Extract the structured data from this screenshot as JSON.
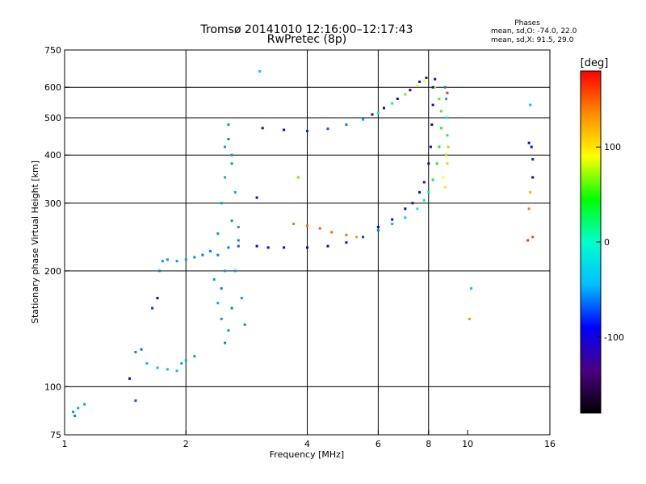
{
  "title_line1": "Tromsø 20141010 12:16:00–12:17:43",
  "title_line2": "RwPretec (8p)",
  "phases": {
    "heading": "Phases",
    "o_stats": "mean, sd,O:  -74.0, 22.0",
    "x_stats": "mean, sd,X:  91.5, 29.0"
  },
  "chart_data": {
    "type": "scatter",
    "title": "Tromsø 20141010 12:16:00–12:17:43",
    "subtitle": "RwPretec (8p)",
    "xlabel": "Frequency [MHz]",
    "ylabel": "Stationary phase Virtual Height [km]",
    "x_scale": "log",
    "y_scale": "log",
    "xlim": [
      1,
      16
    ],
    "ylim": [
      75,
      750
    ],
    "x_ticks": [
      1,
      2,
      4,
      6,
      8,
      10,
      16
    ],
    "y_ticks": [
      75,
      100,
      200,
      300,
      400,
      500,
      600,
      750
    ],
    "x_grid": [
      2,
      4,
      6,
      8
    ],
    "y_grid": [
      100,
      200,
      300,
      400,
      500,
      600
    ],
    "grid": true,
    "colorbar": {
      "label": "[deg]",
      "range": [
        -180,
        180
      ],
      "ticks": [
        100,
        0,
        -100
      ],
      "colors": [
        "#000000",
        "#4b0082",
        "#0000ff",
        "#00bfff",
        "#00ffcc",
        "#00ff00",
        "#ffff00",
        "#ff8c00",
        "#ff0000"
      ]
    },
    "series": [
      {
        "points": [
          [
            1.05,
            86,
            -55
          ],
          [
            1.08,
            88,
            -50
          ],
          [
            1.12,
            90,
            -50
          ],
          [
            1.06,
            84,
            -60
          ]
        ]
      },
      {
        "points": [
          [
            1.5,
            123,
            -60
          ],
          [
            1.55,
            125,
            -65
          ],
          [
            1.6,
            115,
            -45
          ],
          [
            1.7,
            112,
            -45
          ],
          [
            1.8,
            111,
            -45
          ],
          [
            1.9,
            110,
            -45
          ],
          [
            1.95,
            115,
            -50
          ],
          [
            2.0,
            117,
            -50
          ],
          [
            2.1,
            120,
            -55
          ]
        ]
      },
      {
        "points": [
          [
            1.72,
            200,
            -60
          ],
          [
            1.75,
            212,
            -55
          ],
          [
            1.8,
            214,
            -55
          ],
          [
            1.9,
            212,
            -55
          ],
          [
            2.0,
            214,
            -55
          ],
          [
            2.1,
            217,
            -60
          ],
          [
            2.2,
            220,
            -60
          ],
          [
            2.3,
            225,
            -60
          ]
        ]
      },
      {
        "points": [
          [
            2.4,
            250,
            -55
          ],
          [
            2.45,
            300,
            -55
          ],
          [
            2.5,
            350,
            -50
          ],
          [
            2.5,
            420,
            -55
          ],
          [
            2.55,
            480,
            -55
          ],
          [
            2.45,
            180,
            -60
          ],
          [
            2.5,
            200,
            -55
          ],
          [
            2.55,
            230,
            -60
          ],
          [
            2.6,
            270,
            -55
          ],
          [
            2.6,
            160,
            -60
          ],
          [
            2.55,
            140,
            -55
          ],
          [
            2.65,
            320,
            -50
          ],
          [
            2.7,
            260,
            -55
          ],
          [
            2.4,
            220,
            -60
          ],
          [
            2.45,
            150,
            -55
          ],
          [
            2.5,
            130,
            -60
          ],
          [
            2.6,
            380,
            -55
          ],
          [
            2.65,
            200,
            -55
          ],
          [
            2.7,
            240,
            -60
          ],
          [
            2.75,
            170,
            -55
          ],
          [
            2.8,
            145,
            -55
          ],
          [
            2.35,
            190,
            -55
          ],
          [
            2.4,
            165,
            -50
          ],
          [
            2.55,
            440,
            -60
          ],
          [
            2.6,
            400,
            -55
          ]
        ]
      },
      {
        "points": [
          [
            2.7,
            232,
            -70
          ],
          [
            3.0,
            232,
            -90
          ],
          [
            3.2,
            230,
            -95
          ],
          [
            3.5,
            230,
            -95
          ],
          [
            4.0,
            230,
            -95
          ],
          [
            4.5,
            232,
            -90
          ],
          [
            5.0,
            237,
            -85
          ],
          [
            5.5,
            245,
            -75
          ],
          [
            6.0,
            255,
            -60
          ],
          [
            6.5,
            265,
            -45
          ],
          [
            7.0,
            275,
            -30
          ],
          [
            7.5,
            290,
            -10
          ],
          [
            7.8,
            305,
            10
          ],
          [
            8.0,
            320,
            20
          ],
          [
            8.2,
            345,
            35
          ],
          [
            8.4,
            380,
            40
          ],
          [
            8.5,
            420,
            45
          ],
          [
            8.6,
            470,
            50
          ],
          [
            8.6,
            520,
            55
          ],
          [
            8.5,
            560,
            60
          ],
          [
            8.3,
            600,
            70
          ]
        ]
      },
      {
        "points": [
          [
            6.0,
            260,
            -90
          ],
          [
            6.5,
            272,
            -95
          ],
          [
            7.0,
            290,
            -100
          ],
          [
            7.3,
            300,
            -105
          ],
          [
            7.6,
            320,
            -110
          ],
          [
            7.8,
            340,
            -110
          ],
          [
            8.0,
            380,
            -115
          ],
          [
            8.1,
            420,
            -115
          ],
          [
            8.15,
            480,
            -110
          ],
          [
            8.2,
            540,
            -105
          ],
          [
            8.2,
            600,
            -100
          ],
          [
            8.3,
            630,
            -90
          ]
        ]
      },
      {
        "points": [
          [
            3.7,
            265,
            140
          ],
          [
            4.0,
            262,
            145
          ],
          [
            4.3,
            258,
            150
          ],
          [
            4.6,
            252,
            150
          ],
          [
            5.0,
            248,
            145
          ],
          [
            5.3,
            245,
            130
          ]
        ]
      },
      {
        "points": [
          [
            3.1,
            470,
            -95
          ],
          [
            3.5,
            465,
            -90
          ],
          [
            4.0,
            462,
            -80
          ],
          [
            4.5,
            468,
            -70
          ],
          [
            5.0,
            480,
            -60
          ],
          [
            5.5,
            495,
            -50
          ],
          [
            6.0,
            515,
            -20
          ],
          [
            6.5,
            545,
            20
          ],
          [
            7.0,
            575,
            60
          ],
          [
            7.5,
            605,
            80
          ],
          [
            7.8,
            625,
            90
          ]
        ]
      },
      {
        "points": [
          [
            5.8,
            510,
            -100
          ],
          [
            6.2,
            530,
            -105
          ],
          [
            6.7,
            560,
            -110
          ],
          [
            7.2,
            590,
            -110
          ],
          [
            7.6,
            620,
            -115
          ],
          [
            7.9,
            635,
            -115
          ]
        ]
      },
      {
        "points": [
          [
            8.8,
            600,
            -60
          ],
          [
            8.85,
            560,
            -50
          ],
          [
            8.9,
            500,
            -20
          ],
          [
            8.9,
            450,
            30
          ],
          [
            8.85,
            400,
            70
          ],
          [
            8.7,
            350,
            90
          ],
          [
            8.8,
            330,
            100
          ],
          [
            8.9,
            380,
            110
          ],
          [
            8.95,
            420,
            115
          ],
          [
            8.9,
            580,
            165
          ]
        ]
      },
      {
        "points": [
          [
            14.2,
            430,
            -90
          ],
          [
            14.4,
            420,
            -95
          ],
          [
            14.5,
            390,
            -80
          ],
          [
            14.5,
            350,
            -90
          ],
          [
            14.3,
            320,
            120
          ],
          [
            14.2,
            290,
            140
          ],
          [
            14.5,
            245,
            155
          ],
          [
            14.1,
            240,
            160
          ],
          [
            14.3,
            540,
            -40
          ],
          [
            10.2,
            180,
            -40
          ],
          [
            10.1,
            150,
            130
          ],
          [
            3.0,
            310,
            -120
          ],
          [
            3.05,
            660,
            -40
          ],
          [
            3.8,
            350,
            60
          ],
          [
            1.7,
            170,
            -110
          ],
          [
            1.65,
            160,
            -80
          ],
          [
            1.45,
            105,
            -110
          ],
          [
            1.5,
            92,
            -70
          ]
        ]
      }
    ]
  }
}
